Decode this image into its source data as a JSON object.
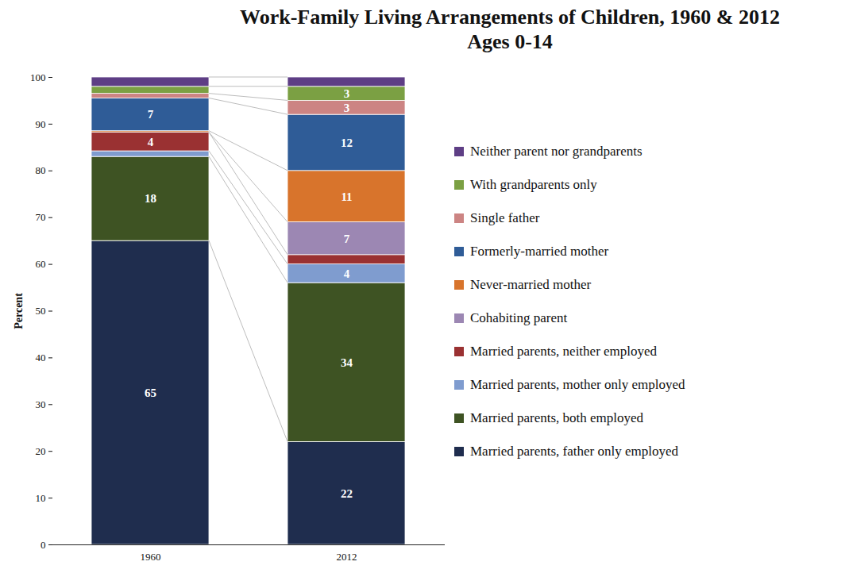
{
  "chart_data": {
    "type": "bar",
    "title": "Work-Family Living Arrangements of Children, 1960 & 2012",
    "subtitle": "Ages 0-14",
    "y_label": "Percent",
    "categories": [
      "1960",
      "2012"
    ],
    "stacked": true,
    "data_labels": true,
    "legend": "right",
    "ylim": [
      0,
      100
    ],
    "yticks": [
      0,
      10,
      20,
      30,
      40,
      50,
      60,
      70,
      80,
      90,
      100
    ],
    "series": [
      {
        "name": "Married parents, father only employed",
        "color": "#1f2d4e",
        "values": [
          65,
          22
        ],
        "value_labels": [
          "65",
          "22"
        ]
      },
      {
        "name": "Married parents, both employed",
        "color": "#3e5323",
        "values": [
          18,
          34
        ],
        "value_labels": [
          "18",
          "34"
        ]
      },
      {
        "name": "Married parents, mother only employed",
        "color": "#7f9ccf",
        "values": [
          1.2,
          4
        ],
        "value_labels": [
          null,
          "4"
        ]
      },
      {
        "name": "Married parents, neither employed",
        "color": "#9a3132",
        "values": [
          4,
          2
        ],
        "value_labels": [
          "4",
          null
        ]
      },
      {
        "name": "Cohabiting parent",
        "color": "#9c87b3",
        "values": [
          0,
          7
        ],
        "value_labels": [
          null,
          "7"
        ]
      },
      {
        "name": "Never-married mother",
        "color": "#d8742c",
        "values": [
          0.3,
          11
        ],
        "value_labels": [
          null,
          "11"
        ]
      },
      {
        "name": "Formerly-married mother",
        "color": "#2f5c97",
        "values": [
          7,
          12
        ],
        "value_labels": [
          "7",
          "12"
        ]
      },
      {
        "name": "Single father",
        "color": "#cc8483",
        "values": [
          1,
          3
        ],
        "value_labels": [
          null,
          "3"
        ]
      },
      {
        "name": "With grandparents only",
        "color": "#7ba043",
        "values": [
          1.5,
          3
        ],
        "value_labels": [
          null,
          "3"
        ]
      },
      {
        "name": "Neither parent nor grandparents",
        "color": "#5e3e85",
        "values": [
          2,
          2
        ],
        "value_labels": [
          null,
          null
        ]
      }
    ]
  }
}
